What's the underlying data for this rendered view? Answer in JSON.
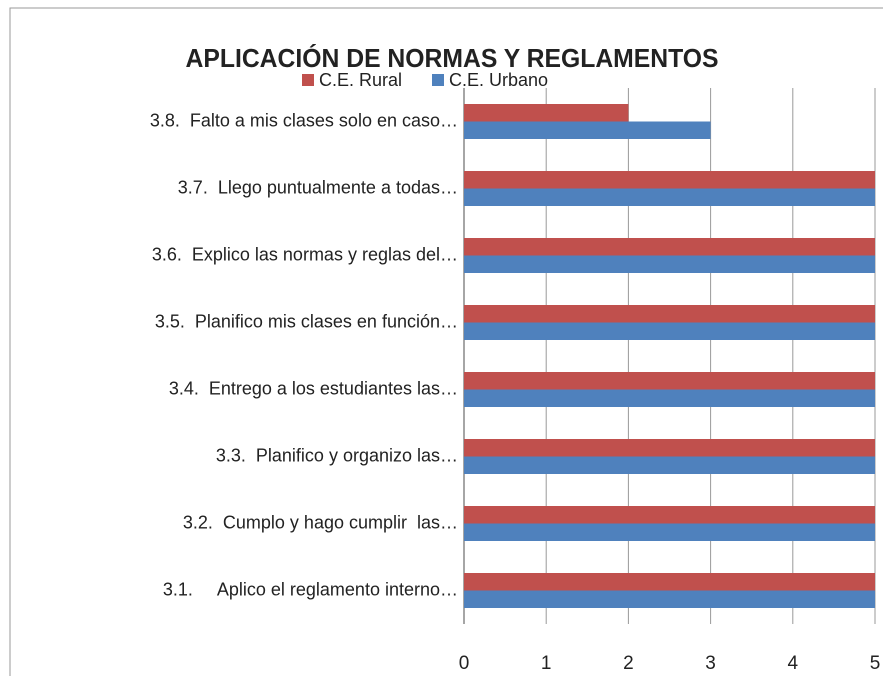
{
  "chart_data": {
    "type": "bar",
    "orientation": "horizontal",
    "title": "APLICACIÓN DE NORMAS Y REGLAMENTOS",
    "categories": [
      "3.8.  Falto a mis clases solo en caso…",
      "3.7.  Llego puntualmente a todas…",
      "3.6.  Explico las normas y reglas del…",
      "3.5.  Planifico mis clases en función…",
      "3.4.  Entrego a los estudiantes las…",
      "3.3.  Planifico y organizo las…",
      "3.2.  Cumplo y hago cumplir  las…",
      "3.1.     Aplico el reglamento interno…"
    ],
    "series": [
      {
        "name": "C.E. Rural",
        "color": "#c0504d",
        "values": [
          2,
          5,
          5,
          5,
          5,
          5,
          5,
          5
        ]
      },
      {
        "name": "C.E. Urbano",
        "color": "#4f81bd",
        "values": [
          3,
          5,
          5,
          5,
          5,
          5,
          5,
          5
        ]
      }
    ],
    "xlim": [
      0,
      5
    ],
    "xticks": [
      0,
      1,
      2,
      3,
      4,
      5
    ],
    "grid": true,
    "legend": "top"
  }
}
